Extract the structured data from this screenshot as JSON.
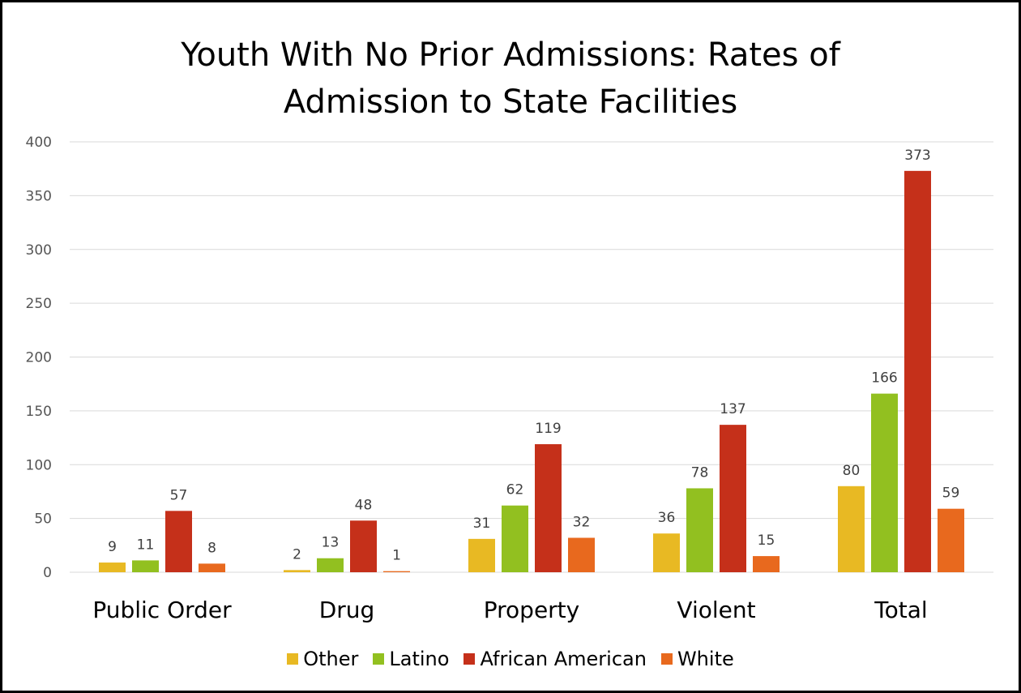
{
  "chart_data": {
    "type": "bar",
    "title_line1": "Youth With No Prior Admissions: Rates of",
    "title_line2": "Admission to State Facilities",
    "categories": [
      "Public Order",
      "Drug",
      "Property",
      "Violent",
      "Total"
    ],
    "series": [
      {
        "name": "Other",
        "color": "#e8b923",
        "values": [
          9,
          2,
          31,
          36,
          80
        ]
      },
      {
        "name": "Latino",
        "color": "#92c020",
        "values": [
          11,
          13,
          62,
          78,
          166
        ]
      },
      {
        "name": "African American",
        "color": "#c5301a",
        "values": [
          57,
          48,
          119,
          137,
          373
        ]
      },
      {
        "name": "White",
        "color": "#e8691e",
        "values": [
          8,
          1,
          32,
          15,
          59
        ]
      }
    ],
    "ylim": [
      0,
      400
    ],
    "yticks": [
      0,
      50,
      100,
      150,
      200,
      250,
      300,
      350,
      400
    ],
    "grid": true,
    "legend_position": "bottom"
  }
}
